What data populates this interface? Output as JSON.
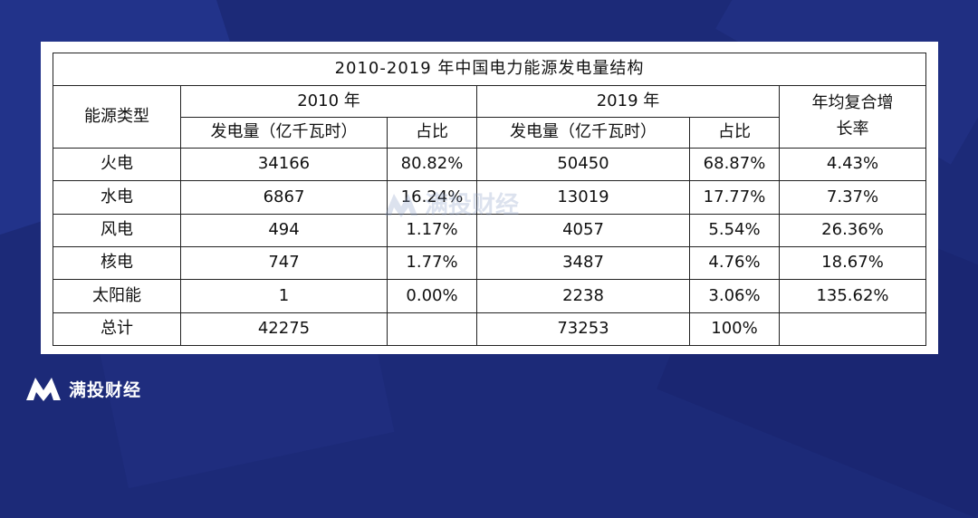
{
  "table": {
    "caption": "2010-2019 年中国电力能源发电量结构",
    "header": {
      "energy_type": "能源类型",
      "year_2010": "2010 年",
      "year_2019": "2019 年",
      "cagr_line1": "年均复合增",
      "cagr_line2": "长率",
      "generation": "发电量（亿千瓦时）",
      "share": "占比"
    },
    "rows": [
      {
        "type": "火电",
        "gen2010": "34166",
        "share2010": "80.82%",
        "gen2019": "50450",
        "share2019": "68.87%",
        "cagr": "4.43%"
      },
      {
        "type": "水电",
        "gen2010": "6867",
        "share2010": "16.24%",
        "gen2019": "13019",
        "share2019": "17.77%",
        "cagr": "7.37%"
      },
      {
        "type": "风电",
        "gen2010": "494",
        "share2010": "1.17%",
        "gen2019": "4057",
        "share2019": "5.54%",
        "cagr": "26.36%"
      },
      {
        "type": "核电",
        "gen2010": "747",
        "share2010": "1.77%",
        "gen2019": "3487",
        "share2019": "4.76%",
        "cagr": "18.67%"
      },
      {
        "type": "太阳能",
        "gen2010": "1",
        "share2010": "0.00%",
        "gen2019": "2238",
        "share2019": "3.06%",
        "cagr": "135.62%"
      },
      {
        "type": "总计",
        "gen2010": "42275",
        "share2010": "",
        "gen2019": "73253",
        "share2019": "100%",
        "cagr": ""
      }
    ]
  },
  "watermark": {
    "text": "满投财经"
  },
  "brand": {
    "name": "满投财经",
    "logo_icon": "m-logo-icon"
  }
}
